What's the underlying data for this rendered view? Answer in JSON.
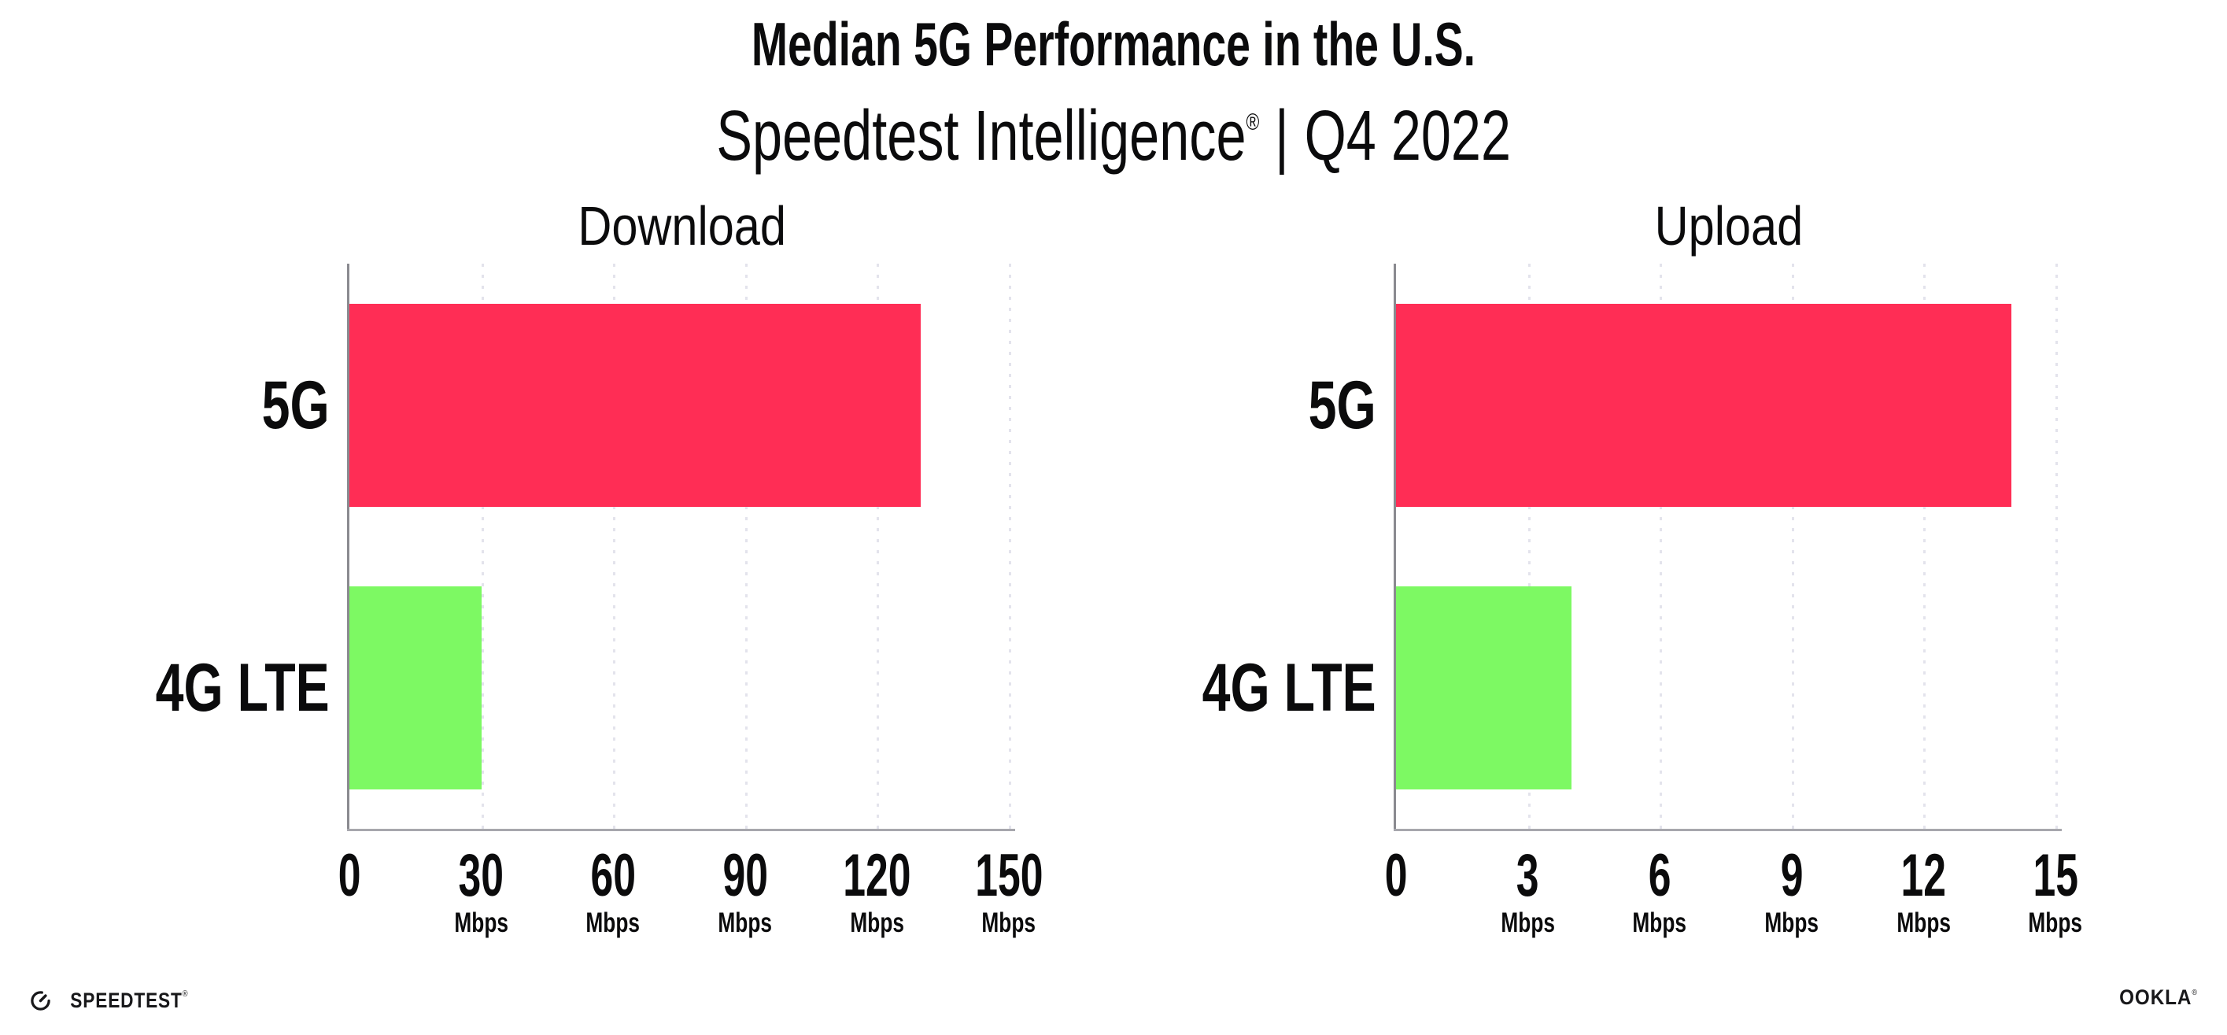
{
  "header": {
    "title": "Median 5G Performance in the U.S.",
    "subtitle_brand": "Speedtest Intelligence",
    "subtitle_reg": "®",
    "subtitle_sep": "|",
    "subtitle_period": "Q4 2022"
  },
  "colors": {
    "bar_5g": "#FF2D55",
    "bar_4g_lte": "#7DF963",
    "gridline": "#E3E3EC",
    "y_axis": "#8A8A90",
    "x_axis": "#A7A7AD",
    "text": "#0B0B0C"
  },
  "chart_data": [
    {
      "type": "bar",
      "orientation": "horizontal",
      "title": "Download",
      "categories": [
        "5G",
        "4G LTE"
      ],
      "values": [
        130,
        30
      ],
      "unit": "Mbps",
      "xlim": [
        0,
        150
      ],
      "xticks": [
        0,
        30,
        60,
        90,
        120,
        150
      ],
      "grid": "vertical-dotted",
      "legend": "none",
      "bar_colors": [
        "#FF2D55",
        "#7DF963"
      ]
    },
    {
      "type": "bar",
      "orientation": "horizontal",
      "title": "Upload",
      "categories": [
        "5G",
        "4G LTE"
      ],
      "values": [
        14,
        4
      ],
      "unit": "Mbps",
      "xlim": [
        0,
        15
      ],
      "xticks": [
        0,
        3,
        6,
        9,
        12,
        15
      ],
      "grid": "vertical-dotted",
      "legend": "none",
      "bar_colors": [
        "#FF2D55",
        "#7DF963"
      ]
    }
  ],
  "footer": {
    "speedtest_label": "SPEEDTEST",
    "speedtest_mark": "®",
    "speedtest_icon": "speedtest-gauge-icon",
    "ookla_label": "OOKLA",
    "ookla_mark": "®"
  }
}
